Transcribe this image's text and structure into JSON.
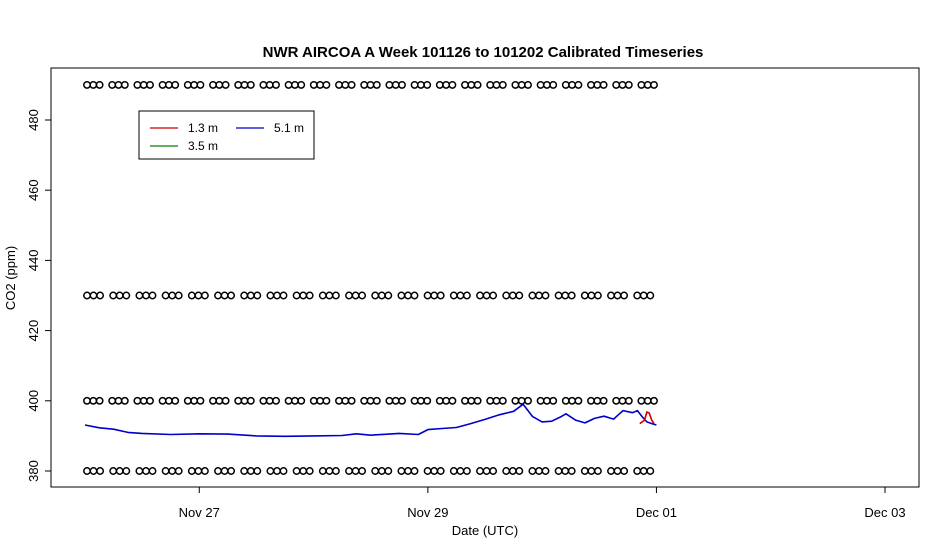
{
  "chart_data": {
    "type": "line",
    "title": "NWR AIRCOA A  Week 101126 to 101202  Calibrated Timeseries",
    "xlabel": "Date (UTC)",
    "ylabel": "CO2 (ppm)",
    "x_ticks": [
      "Nov 27",
      "Nov 29",
      "Dec 01",
      "Dec 03"
    ],
    "y_ticks": [
      380,
      400,
      420,
      440,
      460,
      480
    ],
    "xlim": [
      "2010-11-26 00:00",
      "2010-12-03 00:00"
    ],
    "ylim": [
      378,
      493
    ],
    "legend_position": "top-left",
    "series": [
      {
        "name": "1.3 m",
        "color": "#cc0000",
        "points": [
          [
            "2010-11-30 20:30",
            393.5
          ],
          [
            "2010-11-30 21:30",
            394.5
          ],
          [
            "2010-11-30 22:00",
            396.8
          ],
          [
            "2010-11-30 22:30",
            396.5
          ],
          [
            "2010-11-30 23:00",
            394.5
          ],
          [
            "2010-11-30 23:30",
            393.5
          ]
        ]
      },
      {
        "name": "3.5 m",
        "color": "#008000",
        "points": []
      },
      {
        "name": "5.1 m",
        "color": "#0000cc",
        "points": [
          [
            "2010-11-26 00:00",
            393.1
          ],
          [
            "2010-11-26 03:00",
            392.3
          ],
          [
            "2010-11-26 06:00",
            391.9
          ],
          [
            "2010-11-26 09:00",
            391.0
          ],
          [
            "2010-11-26 12:00",
            390.7
          ],
          [
            "2010-11-26 18:00",
            390.4
          ],
          [
            "2010-11-27 00:00",
            390.6
          ],
          [
            "2010-11-27 06:00",
            390.5
          ],
          [
            "2010-11-27 12:00",
            390.0
          ],
          [
            "2010-11-27 18:00",
            389.9
          ],
          [
            "2010-11-28 00:00",
            390.0
          ],
          [
            "2010-11-28 06:00",
            390.1
          ],
          [
            "2010-11-28 09:00",
            390.6
          ],
          [
            "2010-11-28 12:00",
            390.2
          ],
          [
            "2010-11-28 18:00",
            390.7
          ],
          [
            "2010-11-28 22:00",
            390.4
          ],
          [
            "2010-11-29 00:00",
            391.8
          ],
          [
            "2010-11-29 03:00",
            392.1
          ],
          [
            "2010-11-29 06:00",
            392.4
          ],
          [
            "2010-11-29 09:00",
            393.5
          ],
          [
            "2010-11-29 12:00",
            394.7
          ],
          [
            "2010-11-29 15:00",
            396.0
          ],
          [
            "2010-11-29 18:00",
            397.0
          ],
          [
            "2010-11-29 20:00",
            399.0
          ],
          [
            "2010-11-29 22:00",
            395.5
          ],
          [
            "2010-11-30 00:00",
            394.0
          ],
          [
            "2010-11-30 02:00",
            394.2
          ],
          [
            "2010-11-30 04:00",
            395.5
          ],
          [
            "2010-11-30 05:00",
            396.3
          ],
          [
            "2010-11-30 07:00",
            394.5
          ],
          [
            "2010-11-30 09:00",
            393.7
          ],
          [
            "2010-11-30 11:00",
            395.0
          ],
          [
            "2010-11-30 13:00",
            395.6
          ],
          [
            "2010-11-30 15:00",
            394.8
          ],
          [
            "2010-11-30 16:00",
            396.0
          ],
          [
            "2010-11-30 17:00",
            397.2
          ],
          [
            "2010-11-30 19:00",
            396.6
          ],
          [
            "2010-11-30 20:00",
            397.2
          ],
          [
            "2010-11-30 21:00",
            395.5
          ],
          [
            "2010-11-30 22:00",
            394.0
          ],
          [
            "2010-11-30 23:00",
            393.5
          ],
          [
            "2010-12-01 00:00",
            393.1
          ]
        ]
      }
    ],
    "flag_rows": [
      490,
      430,
      400,
      380
    ],
    "flag_range": [
      "2010-11-26 00:00",
      "2010-12-01 00:00"
    ],
    "flag_marker": "circle"
  }
}
